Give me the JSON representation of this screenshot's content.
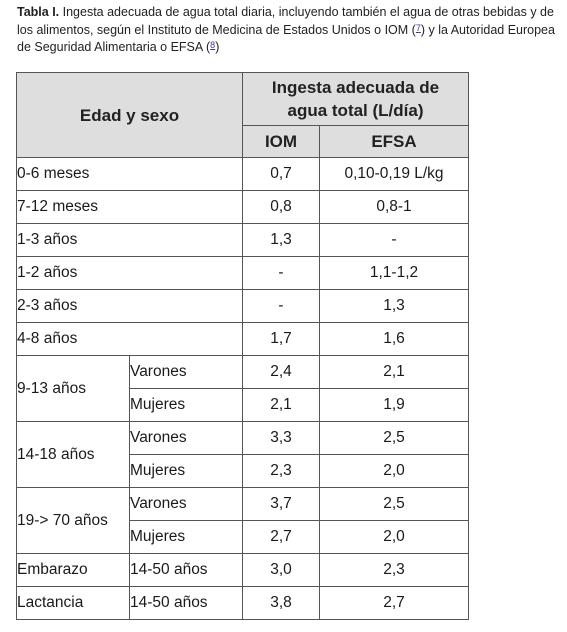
{
  "caption": {
    "label": "Tabla I.",
    "text_1": " Ingesta adecuada de agua total diaria, incluyendo también el agua de otras bebidas y de los alimentos, según el Instituto de Medicina de Estados Unidos o IOM (",
    "ref_1": "7",
    "text_2": ") y la Autoridad Europea de Seguridad Alimentaria o EFSA (",
    "ref_2": "8",
    "text_3": ")"
  },
  "header": {
    "age_sex": "Edad y sexo",
    "intake_line1": "Ingesta adecuada de",
    "intake_line2": "agua total (L/día)",
    "iom": "IOM",
    "efsa": "EFSA"
  },
  "rows": [
    {
      "age": "0-6 meses",
      "iom": "0,7",
      "efsa": "0,10-0,19 L/kg"
    },
    {
      "age": "7-12 meses",
      "iom": "0,8",
      "efsa": "0,8-1"
    },
    {
      "age": "1-3 años",
      "iom": "1,3",
      "efsa": "-"
    },
    {
      "age": "1-2 años",
      "iom": "-",
      "efsa": "1,1-1,2"
    },
    {
      "age": "2-3 años",
      "iom": "-",
      "efsa": "1,3"
    },
    {
      "age": "4-8 años",
      "iom": "1,7",
      "efsa": "1,6"
    }
  ],
  "groups": [
    {
      "age": "9-13 años",
      "sub": [
        {
          "sex": "Varones",
          "iom": "2,4",
          "efsa": "2,1"
        },
        {
          "sex": "Mujeres",
          "iom": "2,1",
          "efsa": "1,9"
        }
      ]
    },
    {
      "age": "14-18 años",
      "sub": [
        {
          "sex": "Varones",
          "iom": "3,3",
          "efsa": "2,5"
        },
        {
          "sex": "Mujeres",
          "iom": "2,3",
          "efsa": "2,0"
        }
      ]
    },
    {
      "age": "19-> 70 años",
      "sub": [
        {
          "sex": "Varones",
          "iom": "3,7",
          "efsa": "2,5"
        },
        {
          "sex": "Mujeres",
          "iom": "2,7",
          "efsa": "2,0"
        }
      ]
    }
  ],
  "special": [
    {
      "age": "Embarazo",
      "range": "14-50 años",
      "iom": "3,0",
      "efsa": "2,3"
    },
    {
      "age": "Lactancia",
      "range": "14-50 años",
      "iom": "3,8",
      "efsa": "2,7"
    }
  ]
}
